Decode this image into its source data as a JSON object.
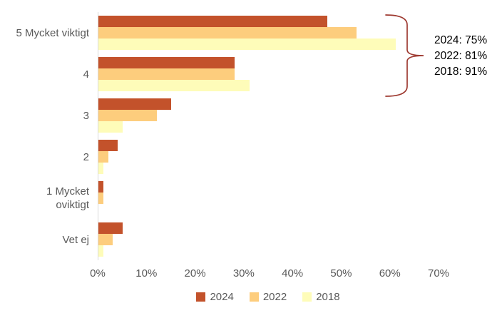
{
  "chart_data": {
    "type": "bar",
    "orientation": "horizontal",
    "title": "",
    "xlabel": "",
    "ylabel": "",
    "categories": [
      "5 Mycket viktigt",
      "4",
      "3",
      "2",
      "1 Mycket\noviktigt",
      "Vet ej"
    ],
    "series": [
      {
        "name": "2024",
        "color": "#C3522B",
        "values": [
          47,
          28,
          15,
          4,
          1,
          5
        ]
      },
      {
        "name": "2022",
        "color": "#FDCD7D",
        "values": [
          53,
          28,
          12,
          2,
          1,
          3
        ]
      },
      {
        "name": "2018",
        "color": "#FEFCB9",
        "values": [
          61,
          31,
          5,
          1,
          0,
          1
        ]
      }
    ],
    "xlim": [
      0,
      70
    ],
    "x_ticks": [
      "0%",
      "10%",
      "20%",
      "30%",
      "40%",
      "50%",
      "60%",
      "70%"
    ],
    "grid": false,
    "legend_position": "bottom",
    "annotation_lines": [
      "2024: 75%",
      "2022: 81%",
      "2018: 91%"
    ]
  },
  "colors": {
    "axis_line": "#d9d9d9",
    "tick_text": "#595959",
    "category_text": "#595959",
    "legend_text": "#595959",
    "annotation_text": "#000000",
    "brace": "#9e3a31"
  }
}
